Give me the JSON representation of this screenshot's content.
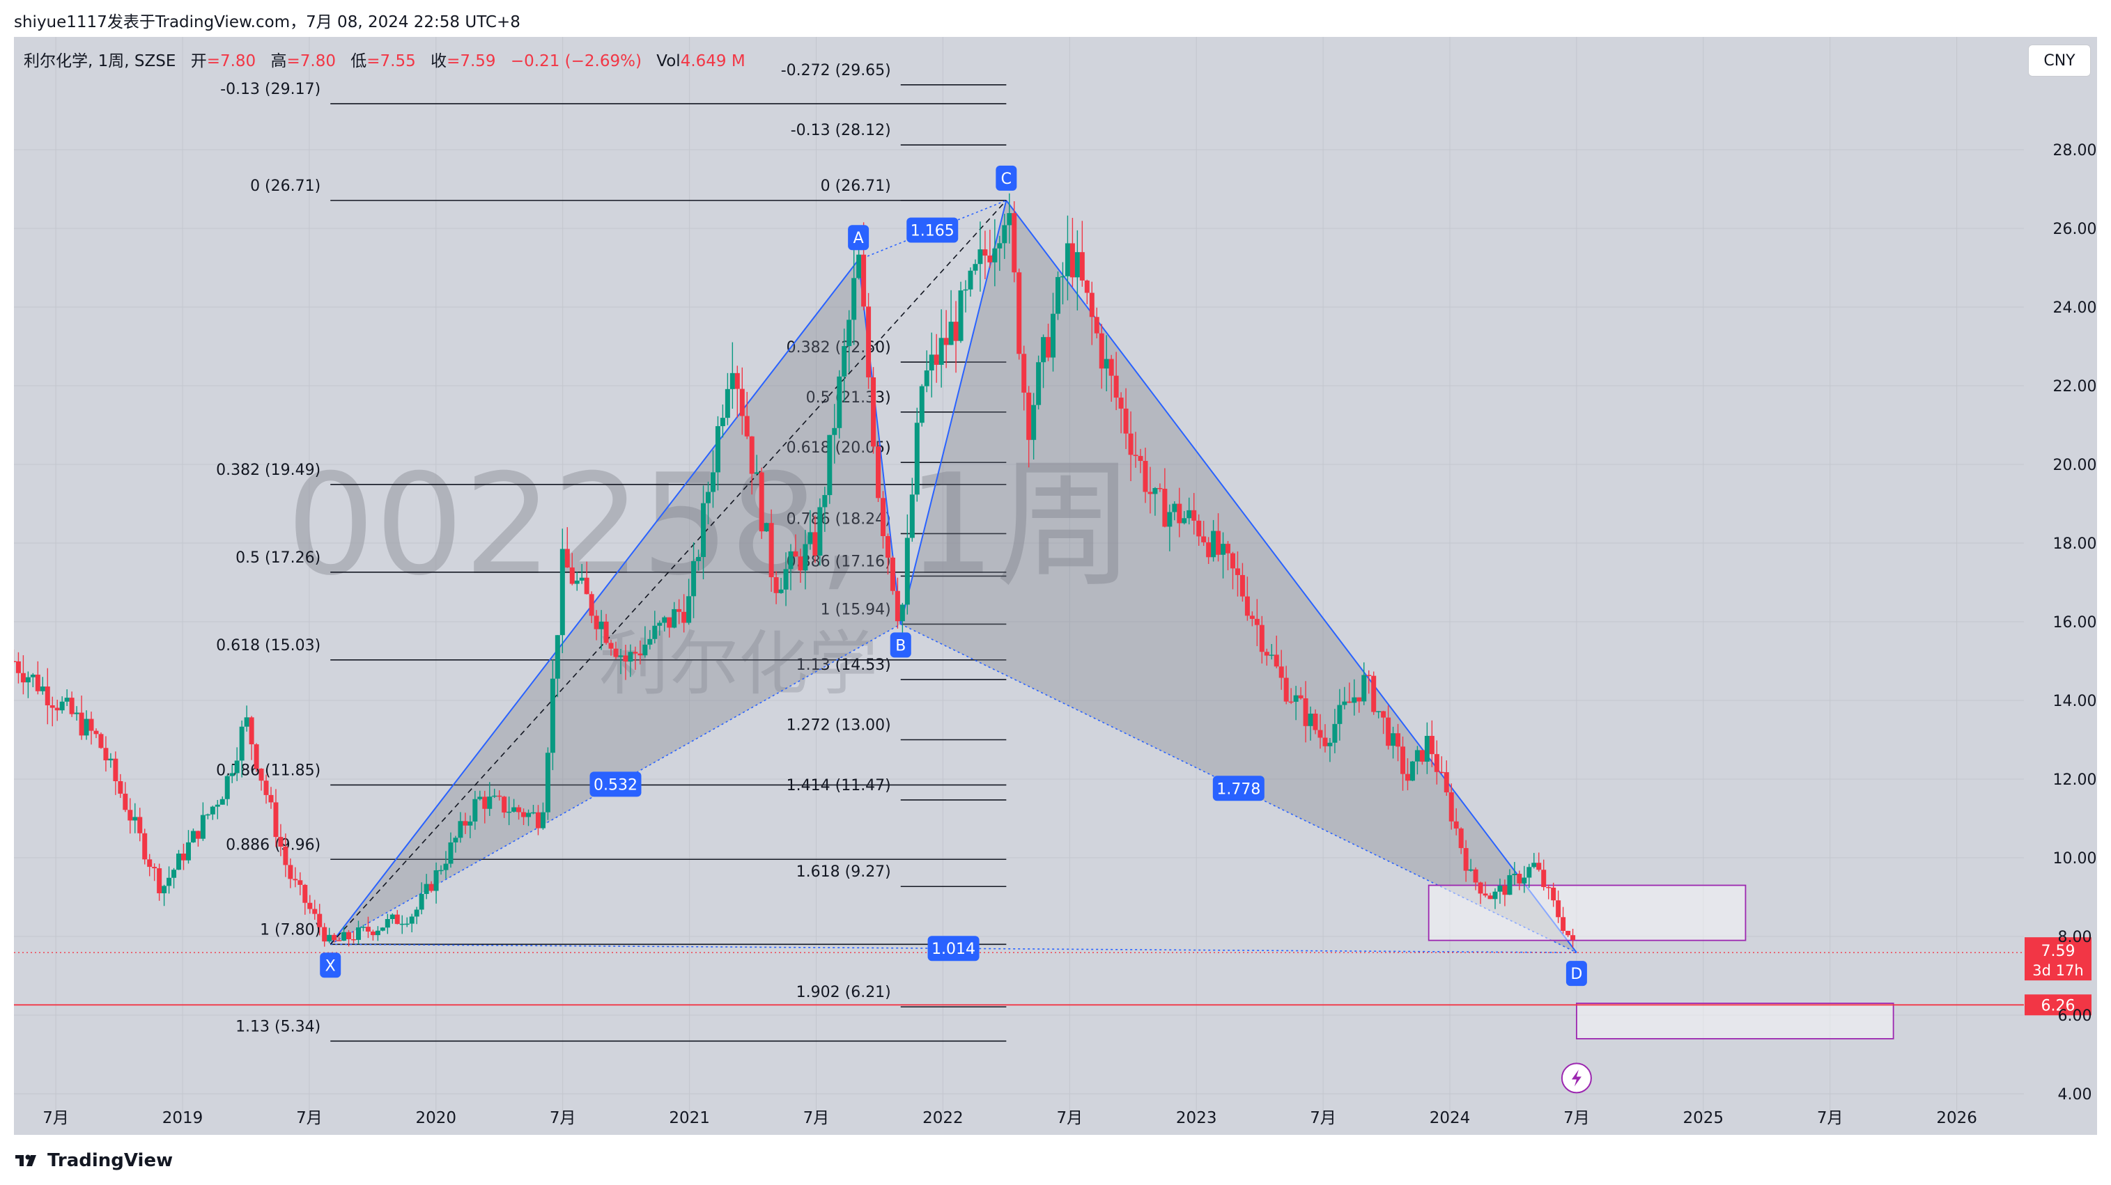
{
  "header": {
    "publish_line": "shiyue1117发表于TradingView.com，7月 08, 2024 22:58 UTC+8"
  },
  "legend": {
    "symbol": "利尔化学, 1周, SZSE",
    "open_label": "开",
    "open_value": "=7.80",
    "high_label": "高",
    "high_value": "=7.80",
    "low_label": "低",
    "low_value": "=7.55",
    "close_label": "收",
    "close_value": "=7.59",
    "change": "−0.21 (−2.69%)",
    "vol_label": "Vol",
    "vol_value": "4.649 M"
  },
  "currency_button": "CNY",
  "watermark": {
    "code": "002258, 1周",
    "name": "利尔化学"
  },
  "footer": {
    "brand": "TradingView"
  },
  "colors": {
    "up": "#089981",
    "down": "#f23645",
    "pattern": "#2962ff",
    "badge": "#2962ff",
    "box": "#9c27b0"
  },
  "chart_data": {
    "type": "candlestick",
    "y_axis": {
      "range": [
        4.0,
        30.0
      ],
      "ticks": [
        "28.00",
        "26.00",
        "24.00",
        "22.00",
        "20.00",
        "18.00",
        "16.00",
        "14.00",
        "12.00",
        "10.00",
        "8.00",
        "6.00",
        "4.00"
      ]
    },
    "x_axis": {
      "ticks": [
        {
          "label": "7月",
          "date": "2018-07"
        },
        {
          "label": "2019",
          "date": "2019-01"
        },
        {
          "label": "7月",
          "date": "2019-07"
        },
        {
          "label": "2020",
          "date": "2020-01"
        },
        {
          "label": "7月",
          "date": "2020-07"
        },
        {
          "label": "2021",
          "date": "2021-01"
        },
        {
          "label": "7月",
          "date": "2021-07"
        },
        {
          "label": "2022",
          "date": "2022-01"
        },
        {
          "label": "7月",
          "date": "2022-07"
        },
        {
          "label": "2023",
          "date": "2023-01"
        },
        {
          "label": "7月",
          "date": "2023-07"
        },
        {
          "label": "2024",
          "date": "2024-01"
        },
        {
          "label": "7月",
          "date": "2024-07"
        },
        {
          "label": "2025",
          "date": "2025-01"
        },
        {
          "label": "7月",
          "date": "2025-07"
        },
        {
          "label": "2026",
          "date": "2026-01"
        }
      ]
    },
    "price_path": [
      {
        "date": "2018-05",
        "price": 15.0
      },
      {
        "date": "2018-09",
        "price": 13.0
      },
      {
        "date": "2018-12",
        "price": 9.2
      },
      {
        "date": "2019-03",
        "price": 11.8
      },
      {
        "date": "2019-04",
        "price": 13.5
      },
      {
        "date": "2019-06",
        "price": 9.6
      },
      {
        "date": "2019-08",
        "price": 7.8
      },
      {
        "date": "2019-12",
        "price": 8.6
      },
      {
        "date": "2020-03",
        "price": 11.5
      },
      {
        "date": "2020-06",
        "price": 11.0
      },
      {
        "date": "2020-07",
        "price": 17.5
      },
      {
        "date": "2020-10",
        "price": 15.0
      },
      {
        "date": "2021-01",
        "price": 16.5
      },
      {
        "date": "2021-03",
        "price": 23.0
      },
      {
        "date": "2021-05",
        "price": 17.0
      },
      {
        "date": "2021-07",
        "price": 18.0
      },
      {
        "date": "2021-09",
        "price": 25.2
      },
      {
        "date": "2021-10",
        "price": 19.0
      },
      {
        "date": "2021-11",
        "price": 15.9
      },
      {
        "date": "2021-12",
        "price": 22.0
      },
      {
        "date": "2022-02",
        "price": 24.0
      },
      {
        "date": "2022-04",
        "price": 26.7
      },
      {
        "date": "2022-05",
        "price": 21.0
      },
      {
        "date": "2022-07",
        "price": 25.5
      },
      {
        "date": "2022-09",
        "price": 22.0
      },
      {
        "date": "2022-11",
        "price": 19.0
      },
      {
        "date": "2023-01",
        "price": 18.5
      },
      {
        "date": "2023-03",
        "price": 17.0
      },
      {
        "date": "2023-05",
        "price": 14.5
      },
      {
        "date": "2023-07",
        "price": 13.0
      },
      {
        "date": "2023-09",
        "price": 14.5
      },
      {
        "date": "2023-11",
        "price": 12.0
      },
      {
        "date": "2023-12",
        "price": 13.0
      },
      {
        "date": "2024-02",
        "price": 9.5
      },
      {
        "date": "2024-03",
        "price": 9.0
      },
      {
        "date": "2024-05",
        "price": 9.8
      },
      {
        "date": "2024-07",
        "price": 7.59
      }
    ],
    "harmonic_points": [
      {
        "label": "X",
        "date": "2019-08",
        "price": 7.8
      },
      {
        "label": "A",
        "date": "2021-09",
        "price": 25.2
      },
      {
        "label": "B",
        "date": "2021-11",
        "price": 15.94
      },
      {
        "label": "C",
        "date": "2022-04",
        "price": 26.71
      },
      {
        "label": "D",
        "date": "2024-07",
        "price": 7.59
      }
    ],
    "ratio_badges": [
      {
        "text": "0.532",
        "between": "X-B"
      },
      {
        "text": "1.165",
        "between": "A-C"
      },
      {
        "text": "1.778",
        "between": "B-D"
      },
      {
        "text": "1.014",
        "between": "X-D"
      }
    ],
    "fib_left": {
      "x_range": [
        "2019-08",
        "2022-04"
      ],
      "levels": [
        {
          "label": "-0.13 (29.17)",
          "price": 29.17
        },
        {
          "label": "0 (26.71)",
          "price": 26.71
        },
        {
          "label": "0.382 (19.49)",
          "price": 19.49
        },
        {
          "label": "0.5 (17.26)",
          "price": 17.26
        },
        {
          "label": "0.618 (15.03)",
          "price": 15.03
        },
        {
          "label": "0.786 (11.85)",
          "price": 11.85
        },
        {
          "label": "0.886 (9.96)",
          "price": 9.96
        },
        {
          "label": "1 (7.80)",
          "price": 7.8
        },
        {
          "label": "1.13 (5.34)",
          "price": 5.34
        }
      ]
    },
    "fib_right": {
      "x_range": [
        "2021-11",
        "2022-04"
      ],
      "levels": [
        {
          "label": "-0.272 (29.65)",
          "price": 29.65
        },
        {
          "label": "-0.13 (28.12)",
          "price": 28.12
        },
        {
          "label": "0 (26.71)",
          "price": 26.71
        },
        {
          "label": "0.382 (22.60)",
          "price": 22.6
        },
        {
          "label": "0.5 (21.33)",
          "price": 21.33
        },
        {
          "label": "0.618 (20.05)",
          "price": 20.05
        },
        {
          "label": "0.786 (18.24)",
          "price": 18.24
        },
        {
          "label": "0.886 (17.16)",
          "price": 17.16
        },
        {
          "label": "1 (15.94)",
          "price": 15.94
        },
        {
          "label": "1.13 (14.53)",
          "price": 14.53
        },
        {
          "label": "1.272 (13.00)",
          "price": 13.0
        },
        {
          "label": "1.414 (11.47)",
          "price": 11.47
        },
        {
          "label": "1.618 (9.27)",
          "price": 9.27
        },
        {
          "label": "1.902 (6.21)",
          "price": 6.21
        }
      ]
    },
    "zones": [
      {
        "from": "2023-12",
        "to": "2025-03",
        "top": 9.3,
        "bottom": 7.9
      },
      {
        "from": "2024-07",
        "to": "2025-10",
        "top": 6.3,
        "bottom": 5.4
      }
    ],
    "horizontal_lines": [
      {
        "price": 6.26,
        "label": "6.26"
      }
    ],
    "last_price": {
      "price": 7.59,
      "label": "7.59",
      "countdown": "3d 17h"
    }
  }
}
